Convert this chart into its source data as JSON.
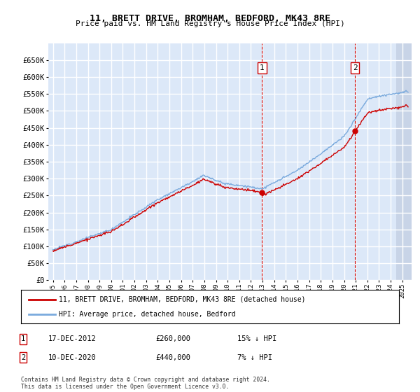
{
  "title": "11, BRETT DRIVE, BROMHAM, BEDFORD, MK43 8RE",
  "subtitle": "Price paid vs. HM Land Registry's House Price Index (HPI)",
  "ylim": [
    0,
    700000
  ],
  "yticks": [
    0,
    50000,
    100000,
    150000,
    200000,
    250000,
    300000,
    350000,
    400000,
    450000,
    500000,
    550000,
    600000,
    650000
  ],
  "sale1_date": 2012.96,
  "sale1_price": 260000,
  "sale1_label": "1",
  "sale2_date": 2020.95,
  "sale2_price": 440000,
  "sale2_label": "2",
  "bg_color": "#dce8f8",
  "hatch_color": "#c0cce0",
  "grid_color": "#ffffff",
  "hpi_color": "#7aaadd",
  "price_color": "#cc0000",
  "sale_marker_color": "#cc0000",
  "vline_color": "#cc0000",
  "legend_title_price": "11, BRETT DRIVE, BROMHAM, BEDFORD, MK43 8RE (detached house)",
  "legend_title_hpi": "HPI: Average price, detached house, Bedford",
  "note1_label": "1",
  "note1_date": "17-DEC-2012",
  "note1_price": "£260,000",
  "note1_hpi": "15% ↓ HPI",
  "note2_label": "2",
  "note2_date": "10-DEC-2020",
  "note2_price": "£440,000",
  "note2_hpi": "7% ↓ HPI",
  "footer": "Contains HM Land Registry data © Crown copyright and database right 2024.\nThis data is licensed under the Open Government Licence v3.0.",
  "xlim_left": 1994.6,
  "xlim_right": 2025.8,
  "hatch_start": 2024.5
}
